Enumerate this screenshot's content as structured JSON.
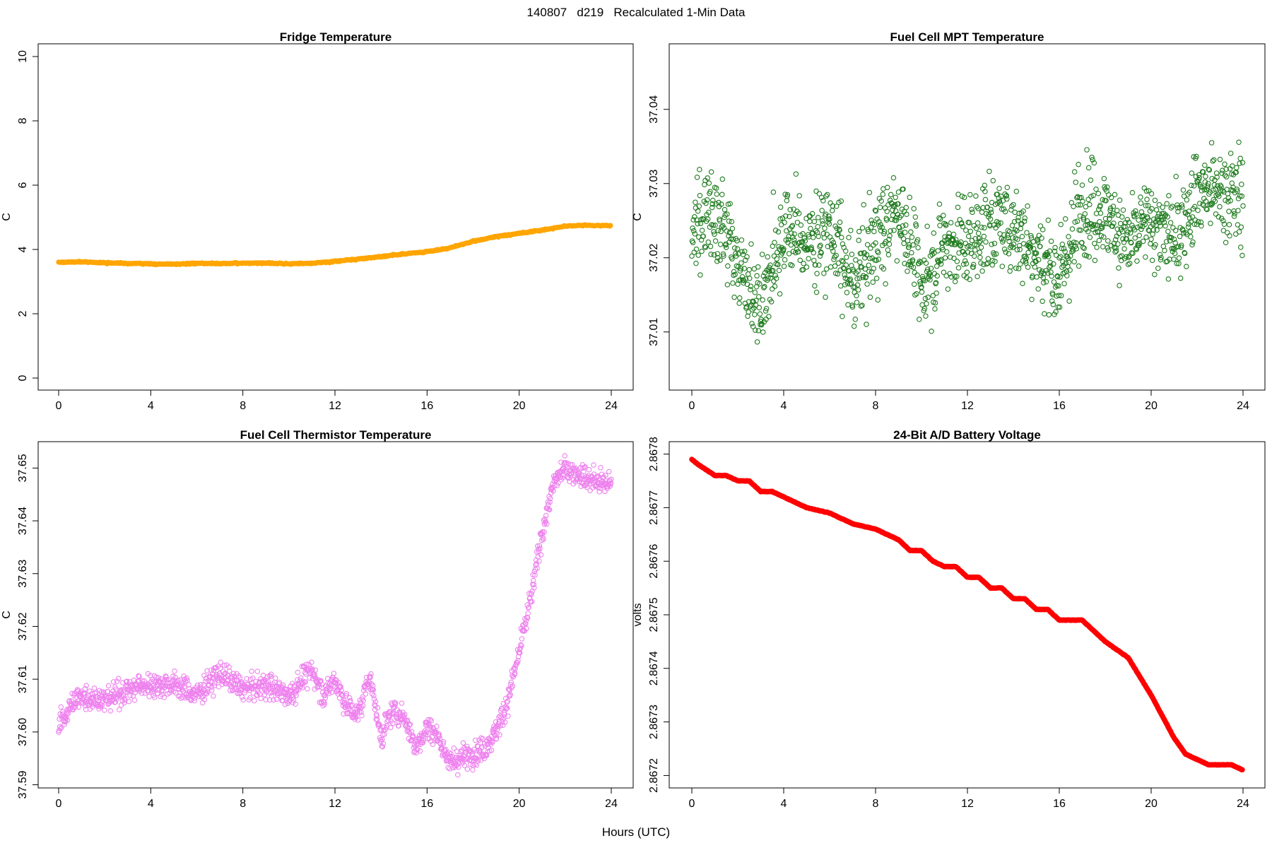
{
  "figure": {
    "title": "140807   d219   Recalculated 1-Min Data",
    "x_label": "Hours (UTC)"
  },
  "chart_data": [
    {
      "type": "scatter",
      "title": "Fridge Temperature",
      "xlabel": "",
      "ylabel": "C",
      "color": "#ffa500",
      "marker": "filled-circle",
      "xlim": [
        0,
        24
      ],
      "ylim": [
        0,
        10
      ],
      "xticks": [
        "0",
        "4",
        "8",
        "12",
        "16",
        "20",
        "24"
      ],
      "yticks": [
        "0",
        "2",
        "4",
        "6",
        "8",
        "10"
      ],
      "profile": {
        "x": [
          0,
          1,
          2,
          3,
          4,
          5,
          6,
          7,
          8,
          9,
          10,
          11,
          12,
          13,
          14,
          15,
          16,
          17,
          18,
          19,
          20,
          21,
          22,
          23,
          24
        ],
        "y": [
          3.6,
          3.62,
          3.58,
          3.57,
          3.55,
          3.54,
          3.57,
          3.56,
          3.57,
          3.58,
          3.55,
          3.57,
          3.63,
          3.7,
          3.78,
          3.86,
          3.93,
          4.05,
          4.25,
          4.4,
          4.5,
          4.6,
          4.73,
          4.75,
          4.74
        ]
      },
      "noise": 0.015
    },
    {
      "type": "scatter",
      "title": "Fuel Cell MPT Temperature",
      "xlabel": "",
      "ylabel": "C",
      "color": "#1e7b1e",
      "marker": "open-circle",
      "xlim": [
        0,
        24
      ],
      "ylim": [
        37.0035,
        37.0475
      ],
      "xticks": [
        "0",
        "4",
        "8",
        "12",
        "16",
        "20",
        "24"
      ],
      "yticks": [
        "37.01",
        "37.02",
        "37.03",
        "37.04"
      ],
      "profile": {
        "x": [
          0,
          1,
          2,
          3,
          4,
          5,
          6,
          7,
          8,
          9,
          10,
          11,
          12,
          13,
          14,
          15,
          16,
          17,
          18,
          19,
          20,
          21,
          22,
          23,
          24
        ],
        "y": [
          37.024,
          37.026,
          37.02,
          37.013,
          37.024,
          37.022,
          37.024,
          37.016,
          37.022,
          37.027,
          37.016,
          37.022,
          37.022,
          37.025,
          37.024,
          37.021,
          37.017,
          37.027,
          37.026,
          37.022,
          37.025,
          37.022,
          37.029,
          37.029,
          37.028
        ]
      },
      "noise": 0.0048
    },
    {
      "type": "scatter",
      "title": "Fuel Cell Thermistor Temperature",
      "xlabel": "",
      "ylabel": "C",
      "color": "#ee82ee",
      "marker": "open-circle",
      "xlim": [
        0,
        24
      ],
      "ylim": [
        37.589,
        37.655
      ],
      "xticks": [
        "0",
        "4",
        "8",
        "12",
        "16",
        "20",
        "24"
      ],
      "yticks": [
        "37.59",
        "37.60",
        "37.61",
        "37.62",
        "37.63",
        "37.64",
        "37.65"
      ],
      "profile": {
        "x": [
          0,
          0.5,
          1,
          2,
          3,
          4,
          5,
          6,
          7,
          8,
          9,
          10,
          11,
          11.5,
          12,
          12.5,
          13,
          13.5,
          14,
          14.5,
          15,
          15.5,
          16,
          16.5,
          17,
          17.5,
          18,
          18.5,
          19,
          19.5,
          20,
          20.5,
          21,
          21.5,
          22,
          23,
          24
        ],
        "y": [
          37.601,
          37.605,
          37.607,
          37.606,
          37.608,
          37.609,
          37.609,
          37.607,
          37.611,
          37.608,
          37.609,
          37.607,
          37.612,
          37.607,
          37.61,
          37.605,
          37.603,
          37.611,
          37.599,
          37.604,
          37.603,
          37.597,
          37.601,
          37.599,
          37.594,
          37.595,
          37.596,
          37.597,
          37.6,
          37.606,
          37.615,
          37.625,
          37.638,
          37.647,
          37.65,
          37.648,
          37.647
        ]
      },
      "noise": 0.0018
    },
    {
      "type": "line",
      "title": "24-Bit A/D Battery Voltage",
      "xlabel": "",
      "ylabel": "volts",
      "color": "#ff0000",
      "marker": "filled-circle",
      "xlim": [
        0,
        24
      ],
      "ylim": [
        2.86719,
        2.86781
      ],
      "xticks": [
        "0",
        "4",
        "8",
        "12",
        "16",
        "20",
        "24"
      ],
      "yticks": [
        "2.8672",
        "2.8673",
        "2.8674",
        "2.8675",
        "2.8676",
        "2.8677",
        "2.8678"
      ],
      "profile": {
        "x": [
          0,
          0.3,
          1,
          1.5,
          2,
          2.5,
          3,
          3.5,
          4,
          5,
          6,
          7,
          8,
          9,
          9.5,
          10,
          10.5,
          11,
          11.5,
          12,
          12.5,
          13,
          13.5,
          14,
          14.5,
          15,
          15.5,
          16,
          16.5,
          17,
          17.5,
          18,
          19,
          20,
          21,
          21.5,
          22,
          22.5,
          23,
          23.5,
          24
        ],
        "y": [
          2.86779,
          2.86778,
          2.86776,
          2.86776,
          2.86775,
          2.86775,
          2.86773,
          2.86773,
          2.86772,
          2.8677,
          2.86769,
          2.86767,
          2.86766,
          2.86764,
          2.86762,
          2.86762,
          2.8676,
          2.86759,
          2.86759,
          2.86757,
          2.86757,
          2.86755,
          2.86755,
          2.86753,
          2.86753,
          2.86751,
          2.86751,
          2.86749,
          2.86749,
          2.86749,
          2.86747,
          2.86745,
          2.86742,
          2.86735,
          2.86727,
          2.86724,
          2.86723,
          2.86722,
          2.86722,
          2.86722,
          2.86721
        ]
      },
      "noise": 8e-07
    }
  ]
}
